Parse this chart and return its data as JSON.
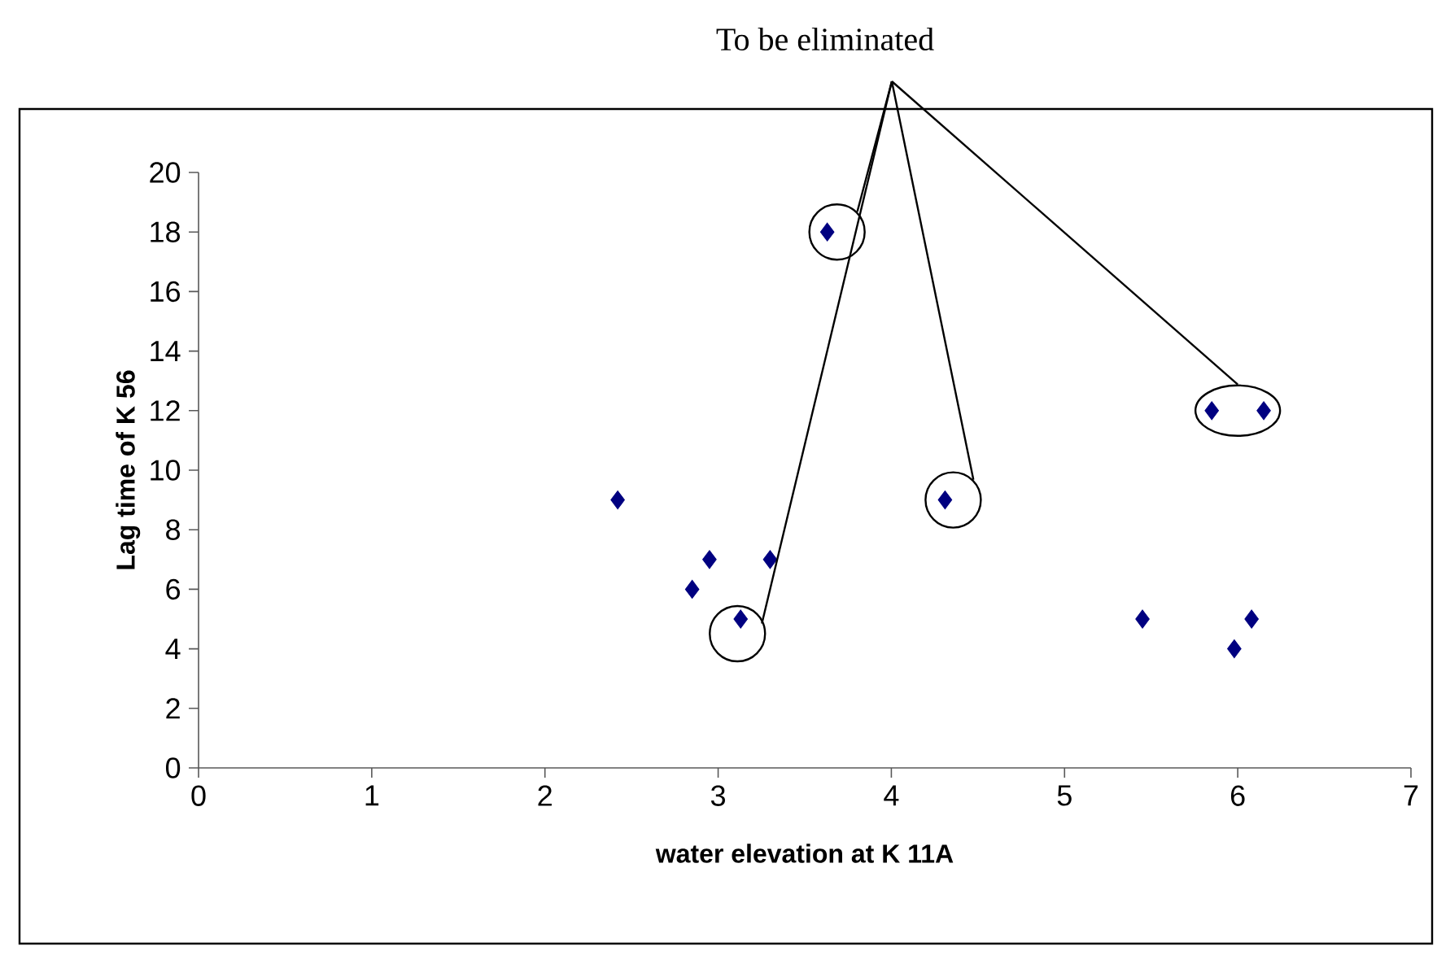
{
  "chart_data": {
    "type": "scatter",
    "xlabel": "water elevation at K 11A",
    "ylabel": "Lag time of K 56",
    "annotations": [
      "To be eliminated"
    ],
    "x": [
      2.42,
      2.85,
      2.95,
      3.13,
      3.3,
      3.63,
      4.31,
      5.45,
      5.85,
      5.98,
      6.08,
      6.15
    ],
    "values": [
      9,
      6,
      7,
      5,
      7,
      18,
      9,
      5,
      12,
      4,
      5,
      12
    ],
    "color": "#000080",
    "marker": "diamond",
    "xlim": [
      0,
      7
    ],
    "ylim": [
      0,
      20
    ],
    "xticks": [
      0,
      1,
      2,
      3,
      4,
      5,
      6,
      7
    ],
    "yticks": [
      0,
      2,
      4,
      6,
      8,
      10,
      12,
      14,
      16,
      18,
      20
    ]
  }
}
